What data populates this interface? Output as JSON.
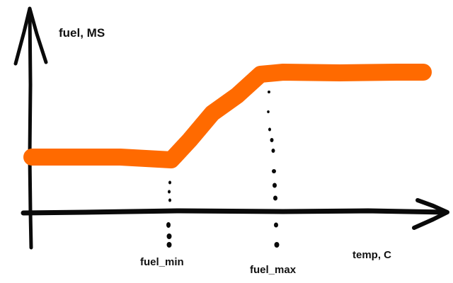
{
  "axes": {
    "y_label": "fuel, MS",
    "x_label": "temp, C"
  },
  "markers": {
    "fuel_min": "fuel_min",
    "fuel_max": "fuel_max"
  },
  "colors": {
    "curve": "#ff6a00",
    "ink": "#0a0a0a"
  }
}
